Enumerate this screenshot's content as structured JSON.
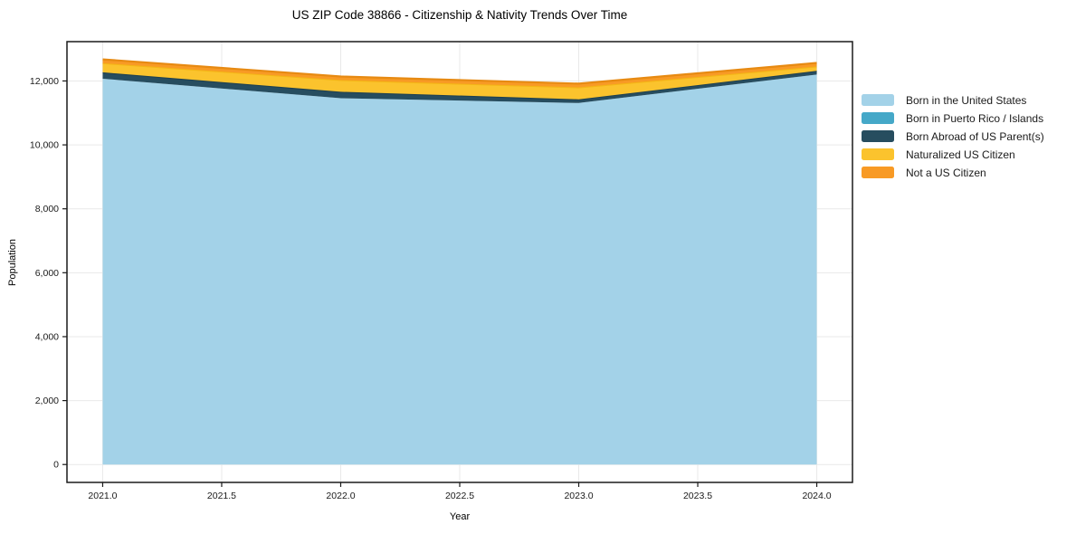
{
  "chart_data": {
    "type": "area",
    "stacked": true,
    "title": "US ZIP Code 38866 - Citizenship & Nativity Trends Over Time",
    "xlabel": "Year",
    "ylabel": "Population",
    "x": [
      2021,
      2022,
      2023,
      2024
    ],
    "series": [
      {
        "name": "Born in the United States",
        "color": "#A3D2E8",
        "edge": null,
        "values": [
          12070,
          11460,
          11310,
          12200
        ]
      },
      {
        "name": "Born in Puerto Rico / Islands",
        "color": "#45A8C8",
        "edge": null,
        "values": [
          0,
          0,
          0,
          0
        ]
      },
      {
        "name": "Born Abroad of US Parent(s)",
        "color": "#274D5F",
        "edge": "#1F4150",
        "values": [
          200,
          200,
          115,
          115
        ]
      },
      {
        "name": "Naturalized US Citizen",
        "color": "#FBC32D",
        "edge": "#F4B516",
        "values": [
          290,
          370,
          375,
          140
        ]
      },
      {
        "name": "Not a US Citizen",
        "color": "#F89A25",
        "edge": "#E78A12",
        "values": [
          115,
          110,
          115,
          110
        ]
      }
    ],
    "xticks": [
      2021.0,
      2021.5,
      2022.0,
      2022.5,
      2023.0,
      2023.5,
      2024.0
    ],
    "xtick_labels": [
      "2021.0",
      "2021.5",
      "2022.0",
      "2022.5",
      "2023.0",
      "2023.5",
      "2024.0"
    ],
    "yticks": [
      0,
      2000,
      4000,
      6000,
      8000,
      10000,
      12000
    ],
    "ytick_labels": [
      "0",
      "2,000",
      "4,000",
      "6,000",
      "8,000",
      "10,000",
      "12,000"
    ],
    "xlim": [
      2020.85,
      2024.15
    ],
    "ylim": [
      -560,
      13230
    ],
    "grid": true,
    "grid_color": "#e9e9e9",
    "spine_color": "#1a1a1a",
    "tick_text_color": "#1a1a1a",
    "legend_position": "right-outside"
  }
}
